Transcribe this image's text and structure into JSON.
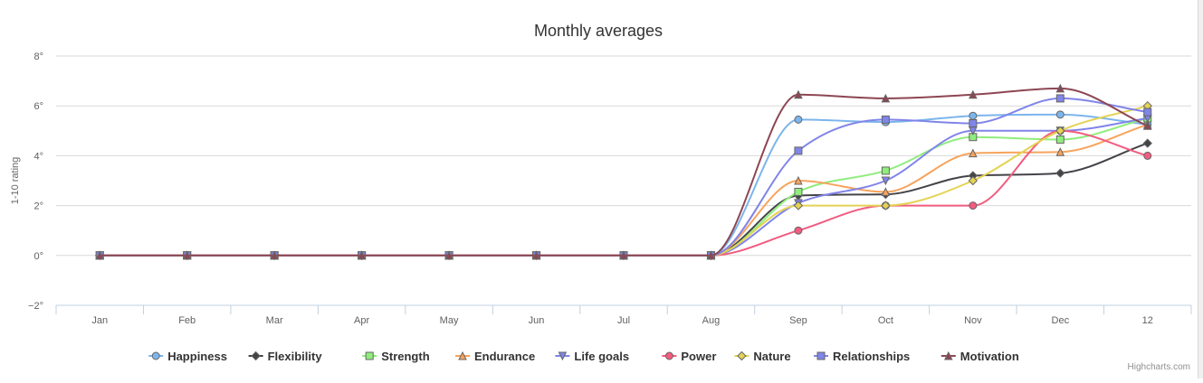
{
  "chart_data": {
    "type": "line",
    "title": "Monthly averages",
    "ylabel": "1-10 rating",
    "xlabel": "",
    "categories": [
      "Jan",
      "Feb",
      "Mar",
      "Apr",
      "May",
      "Jun",
      "Jul",
      "Aug",
      "Sep",
      "Oct",
      "Nov",
      "Dec",
      "12"
    ],
    "ylim": [
      -2,
      8
    ],
    "yticks": [
      -2,
      0,
      2,
      4,
      6,
      8
    ],
    "ytick_labels": [
      "−2°",
      "0°",
      "2°",
      "4°",
      "6°",
      "8°"
    ],
    "grid": true,
    "legend_position": "bottom",
    "series": [
      {
        "name": "Happiness",
        "color": "#7cb5ec",
        "marker": "circle",
        "values": [
          0,
          0,
          0,
          0,
          0,
          0,
          0,
          0,
          5.45,
          5.35,
          5.6,
          5.65,
          5.25
        ]
      },
      {
        "name": "Flexibility",
        "color": "#434348",
        "marker": "diamond",
        "values": [
          0,
          0,
          0,
          0,
          0,
          0,
          0,
          0,
          2.4,
          2.45,
          3.2,
          3.3,
          4.5
        ]
      },
      {
        "name": "Strength",
        "color": "#90ed7d",
        "marker": "square",
        "values": [
          0,
          0,
          0,
          0,
          0,
          0,
          0,
          0,
          2.55,
          3.4,
          4.75,
          4.65,
          5.5
        ]
      },
      {
        "name": "Endurance",
        "color": "#f7a35c",
        "marker": "triangle",
        "values": [
          0,
          0,
          0,
          0,
          0,
          0,
          0,
          0,
          3.0,
          2.55,
          4.1,
          4.15,
          5.25
        ]
      },
      {
        "name": "Life goals",
        "color": "#8085e9",
        "marker": "triangle-down",
        "values": [
          0,
          0,
          0,
          0,
          0,
          0,
          0,
          0,
          2.1,
          3.0,
          5.0,
          5.0,
          5.5
        ]
      },
      {
        "name": "Power",
        "color": "#f15c80",
        "marker": "circle",
        "values": [
          0,
          0,
          0,
          0,
          0,
          0,
          0,
          0,
          1.0,
          2.0,
          2.0,
          5.0,
          4.0
        ]
      },
      {
        "name": "Nature",
        "color": "#e4d354",
        "marker": "diamond",
        "values": [
          0,
          0,
          0,
          0,
          0,
          0,
          0,
          0,
          2.0,
          2.0,
          3.0,
          5.0,
          6.0
        ]
      },
      {
        "name": "Relationships",
        "color": "#8085e8",
        "marker": "square",
        "values": [
          0,
          0,
          0,
          0,
          0,
          0,
          0,
          0,
          4.2,
          5.45,
          5.3,
          6.3,
          5.75
        ]
      },
      {
        "name": "Motivation",
        "color": "#8d4653",
        "marker": "triangle",
        "values": [
          0,
          0,
          0,
          0,
          0,
          0,
          0,
          0,
          6.45,
          6.3,
          6.45,
          6.7,
          5.2
        ]
      }
    ]
  },
  "credits": "Highcharts.com"
}
